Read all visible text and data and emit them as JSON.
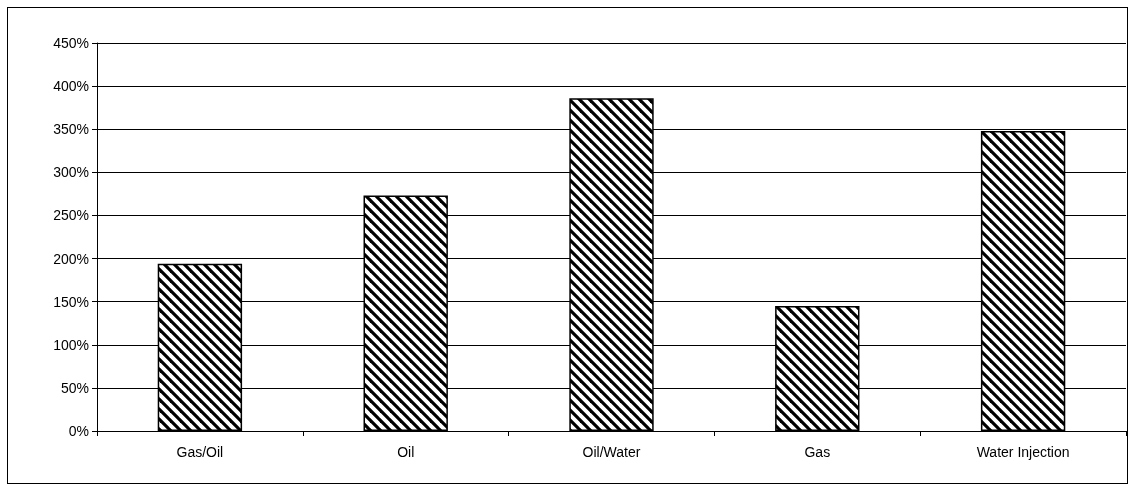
{
  "chart_data": {
    "type": "bar",
    "categories": [
      "Gas/Oil",
      "Oil",
      "Oil/Water",
      "Gas",
      "Water Injection"
    ],
    "values": [
      194,
      273,
      386,
      145,
      348
    ],
    "color": "#000000",
    "ylim": [
      0,
      450
    ],
    "yticks": [
      {
        "value": 0,
        "label": "0%"
      },
      {
        "value": 50,
        "label": "50%"
      },
      {
        "value": 100,
        "label": "100%"
      },
      {
        "value": 150,
        "label": "150%"
      },
      {
        "value": 200,
        "label": "200%"
      },
      {
        "value": 250,
        "label": "250%"
      },
      {
        "value": 300,
        "label": "300%"
      },
      {
        "value": 350,
        "label": "350%"
      },
      {
        "value": 400,
        "label": "400%"
      },
      {
        "value": 450,
        "label": "450%"
      }
    ],
    "grid": "y"
  }
}
